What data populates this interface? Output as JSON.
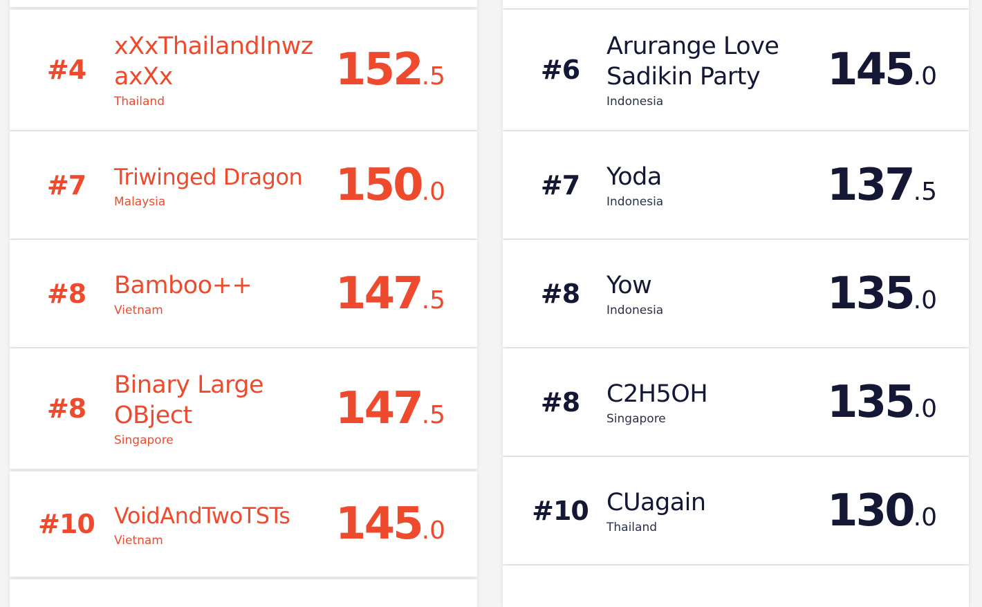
{
  "left": {
    "color": "#ee4a2e",
    "rows": [
      {
        "rank": "#4",
        "name": "xXxThailandInwz axXx",
        "country": "Thailand",
        "score_int": "152",
        "score_dec": ".5"
      },
      {
        "rank": "#7",
        "name": "Triwinged Dragon",
        "country": "Malaysia",
        "score_int": "150",
        "score_dec": ".0"
      },
      {
        "rank": "#8",
        "name": "Bamboo++",
        "country": "Vietnam",
        "score_int": "147",
        "score_dec": ".5"
      },
      {
        "rank": "#8",
        "name": "Binary Large OBject",
        "country": "Singapore",
        "score_int": "147",
        "score_dec": ".5"
      },
      {
        "rank": "#10",
        "name": "VoidAndTwoTSTs",
        "country": "Vietnam",
        "score_int": "145",
        "score_dec": ".0"
      }
    ]
  },
  "right": {
    "color": "#141834",
    "rows": [
      {
        "rank": "#6",
        "name": "Arurange Love Sadikin Party",
        "country": "Indonesia",
        "score_int": "145",
        "score_dec": ".0"
      },
      {
        "rank": "#7",
        "name": "Yoda",
        "country": "Indonesia",
        "score_int": "137",
        "score_dec": ".5"
      },
      {
        "rank": "#8",
        "name": "Yow",
        "country": "Indonesia",
        "score_int": "135",
        "score_dec": ".0"
      },
      {
        "rank": "#8",
        "name": "C2H5OH",
        "country": "Singapore",
        "score_int": "135",
        "score_dec": ".0"
      },
      {
        "rank": "#10",
        "name": "CUagain",
        "country": "Thailand",
        "score_int": "130",
        "score_dec": ".0"
      }
    ]
  }
}
